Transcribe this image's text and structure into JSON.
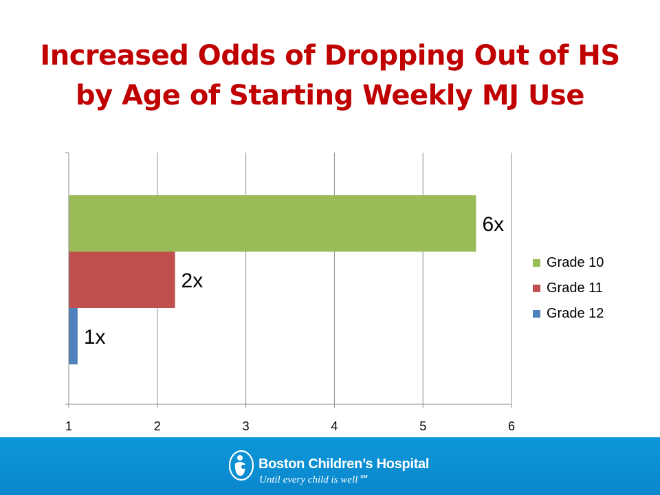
{
  "title_lines": [
    "Increased Odds of Dropping Out of HS",
    "by Age of Starting Weekly MJ Use"
  ],
  "chart_data": {
    "type": "bar",
    "orientation": "horizontal",
    "xlim": [
      1,
      6
    ],
    "xticks": [
      "1",
      "2",
      "3",
      "4",
      "5",
      "6"
    ],
    "grid": true,
    "legend_position": "right",
    "series": [
      {
        "name": "Grade 10",
        "value": 5.6,
        "label": "6x",
        "color": "#9bbb59"
      },
      {
        "name": "Grade 11",
        "value": 2.2,
        "label": "2x",
        "color": "#c0504d"
      },
      {
        "name": "Grade 12",
        "value": 1.1,
        "label": "1x",
        "color": "#4f81bd"
      }
    ]
  },
  "footer": {
    "brand_name": "Boston Children’s Hospital",
    "tagline": "Until every child is well℠",
    "background": "#0a86cc"
  }
}
